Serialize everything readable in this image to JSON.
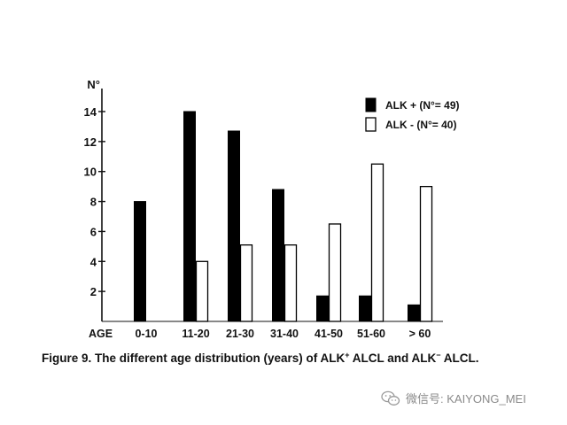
{
  "chart_data": {
    "type": "bar",
    "ylabel": "N°",
    "xlabel": "AGE",
    "categories": [
      "0-10",
      "11-20",
      "21-30",
      "31-40",
      "41-50",
      "51-60",
      "> 60"
    ],
    "series": [
      {
        "name": "ALK + (N°= 49)",
        "values": [
          8,
          14,
          12.7,
          8.8,
          1.7,
          1.7,
          1.1
        ],
        "fill": "#000000"
      },
      {
        "name": "ALK - (N°= 40)",
        "values": [
          0,
          4,
          5.1,
          5.1,
          6.5,
          10.5,
          9
        ],
        "fill": "#ffffff"
      }
    ],
    "yticks": [
      2,
      4,
      6,
      8,
      10,
      12,
      14
    ],
    "ylim": [
      0,
      15.5
    ],
    "legend_position": "top-right",
    "grid": false
  },
  "caption": {
    "prefix": "Figure 9. The different age distribution (years) of ALK",
    "sup1": "+",
    "middle": " ALCL and ALK",
    "sup2": "−",
    "suffix": " ALCL."
  },
  "watermark": {
    "icon": "wechat-icon",
    "text": "微信号: KAIYONG_MEI"
  }
}
